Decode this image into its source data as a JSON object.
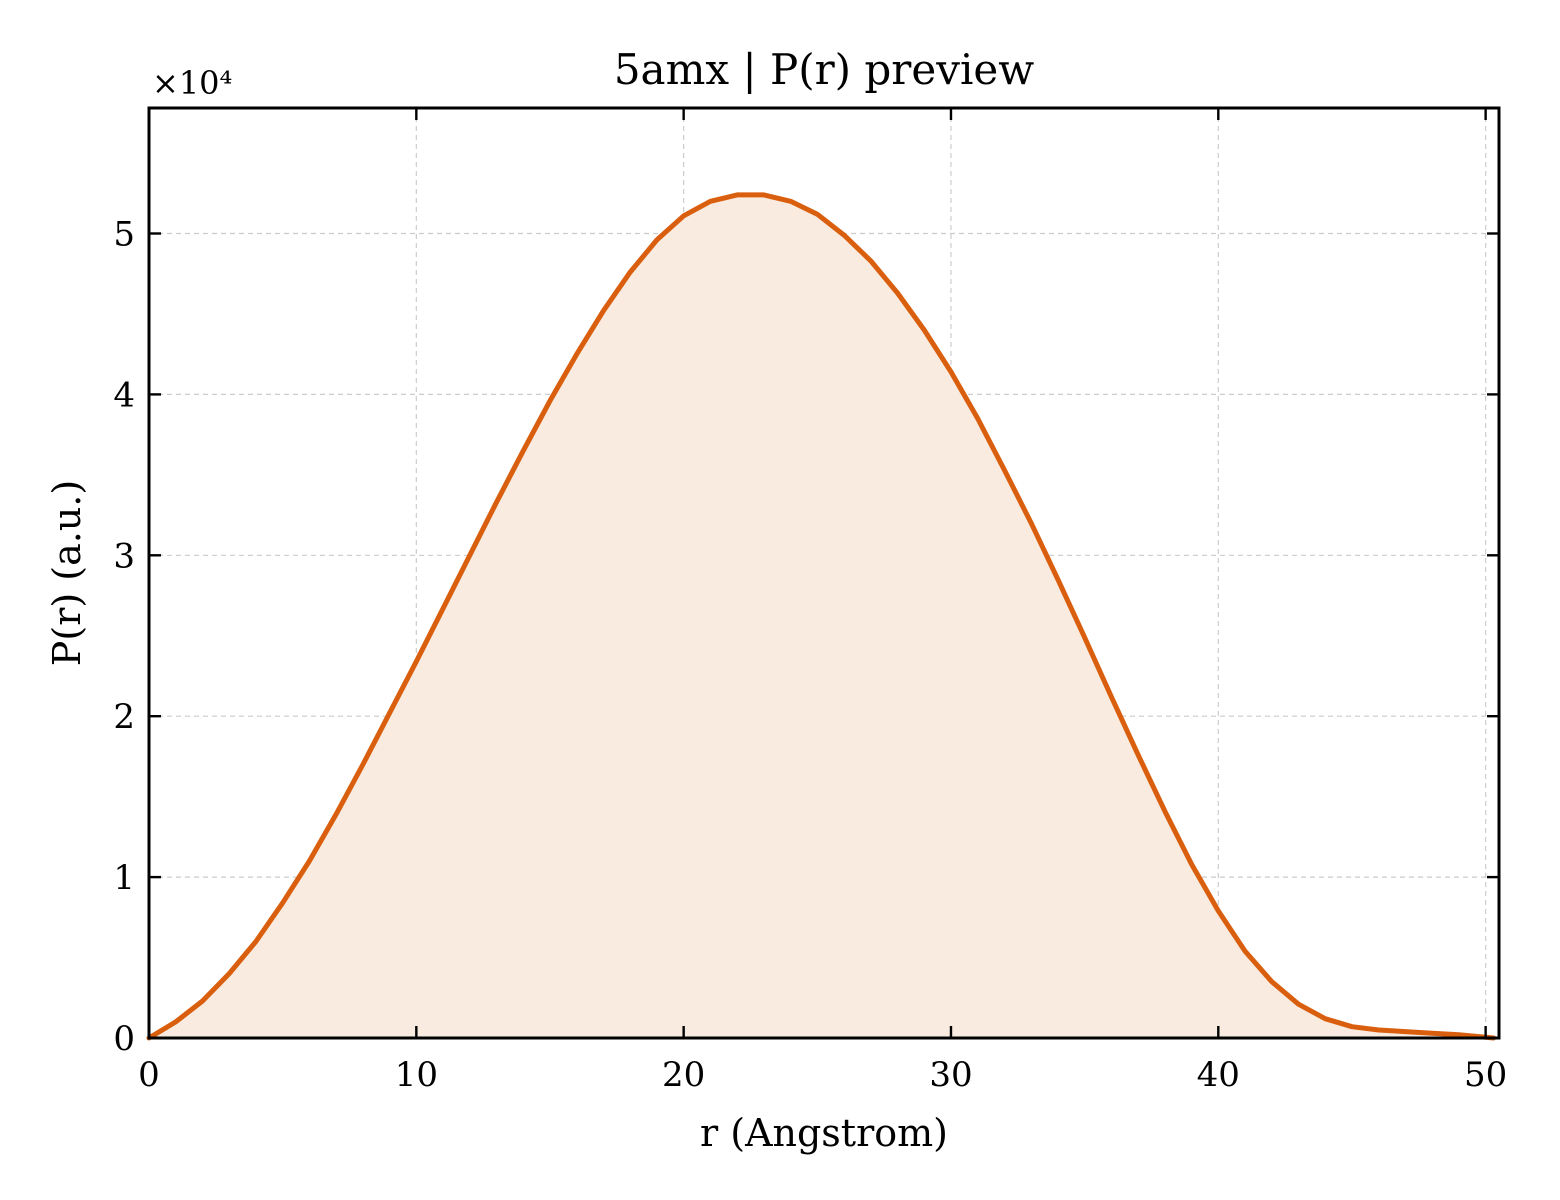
{
  "chart_data": {
    "type": "area",
    "title": "5amx | P(r) preview",
    "xlabel": "r (Angstrom)",
    "ylabel": "P(r) (a.u.)",
    "y_multiplier": "×10⁴",
    "xlim": [
      0,
      50.5
    ],
    "ylim": [
      0,
      5.78
    ],
    "xticks": [
      0,
      10,
      20,
      30,
      40,
      50
    ],
    "yticks": [
      0,
      1,
      2,
      3,
      4,
      5
    ],
    "grid": true,
    "line_color": "#d95f0e",
    "fill_color": "#f9ebe0",
    "series": [
      {
        "x": [
          0,
          1,
          2,
          3,
          4,
          5,
          6,
          7,
          8,
          9,
          10,
          11,
          12,
          13,
          14,
          15,
          16,
          17,
          18,
          19,
          20,
          21,
          22,
          23,
          24,
          25,
          26,
          27,
          28,
          29,
          30,
          31,
          32,
          33,
          34,
          35,
          36,
          37,
          38,
          39,
          40,
          41,
          42,
          43,
          44,
          45,
          46,
          47,
          48,
          49,
          50.3
        ],
        "y": [
          0.0,
          0.1,
          0.23,
          0.4,
          0.6,
          0.84,
          1.1,
          1.39,
          1.7,
          2.02,
          2.34,
          2.67,
          3.0,
          3.33,
          3.65,
          3.96,
          4.25,
          4.52,
          4.76,
          4.96,
          5.11,
          5.2,
          5.24,
          5.24,
          5.2,
          5.12,
          4.99,
          4.83,
          4.63,
          4.4,
          4.14,
          3.85,
          3.53,
          3.2,
          2.85,
          2.49,
          2.12,
          1.76,
          1.41,
          1.08,
          0.79,
          0.54,
          0.35,
          0.21,
          0.12,
          0.07,
          0.05,
          0.04,
          0.03,
          0.02,
          0.0
        ]
      }
    ]
  }
}
